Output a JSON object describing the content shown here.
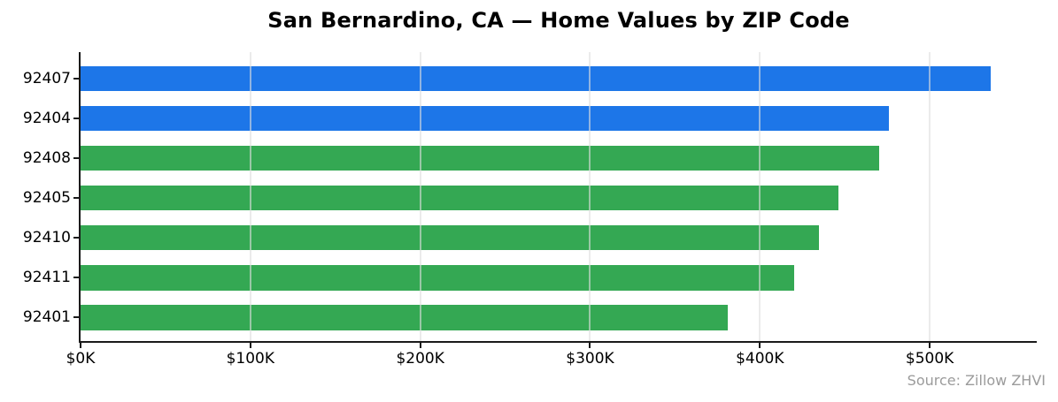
{
  "title": "San Bernardino, CA — Home Values by ZIP Code",
  "source_note": "Source: Zillow ZHVI",
  "colors": {
    "blue_bar": "#1d76e8",
    "green_bar": "#34a853",
    "axis": "#1a1a1a",
    "grid": "#dedede",
    "source_text": "#9b9b9b"
  },
  "chart_data": {
    "type": "bar",
    "orientation": "horizontal",
    "title": "San Bernardino, CA — Home Values by ZIP Code",
    "xlabel": "",
    "ylabel": "",
    "categories": [
      "92407",
      "92404",
      "92408",
      "92405",
      "92410",
      "92411",
      "92401"
    ],
    "values_thousands": [
      536,
      476,
      470,
      446,
      435,
      420,
      381
    ],
    "unit": "USD thousands",
    "bar_colors": [
      "#1d76e8",
      "#1d76e8",
      "#34a853",
      "#34a853",
      "#34a853",
      "#34a853",
      "#34a853"
    ],
    "x_tick_labels": [
      "$0K",
      "$100K",
      "$200K",
      "$300K",
      "$400K",
      "$500K"
    ],
    "x_tick_values": [
      0,
      100,
      200,
      300,
      400,
      500
    ],
    "xlim": [
      0,
      563
    ],
    "grid": "vertical-gridlines-over-bars",
    "legend": "none",
    "annotation": "Source: Zillow ZHVI"
  }
}
